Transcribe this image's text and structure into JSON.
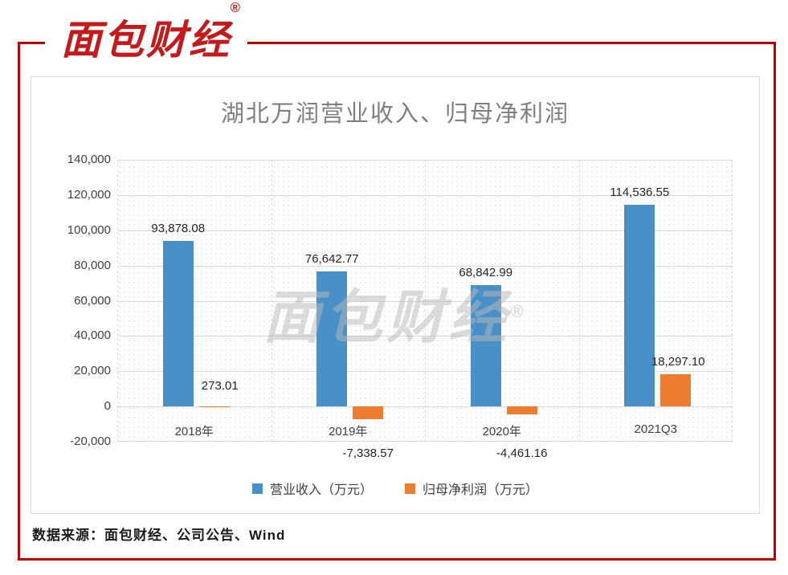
{
  "brand": {
    "logo_text": "面包财经",
    "registered_mark": "®",
    "frame_color": "#c00000"
  },
  "watermark": {
    "text": "面包财经",
    "registered_mark": "®"
  },
  "chart_data": {
    "type": "bar",
    "title": "湖北万润营业收入、归母净利润",
    "categories": [
      "2018年",
      "2019年",
      "2020年",
      "2021Q3"
    ],
    "series": [
      {
        "name": "营业收入（万元）",
        "color": "#4a90c8",
        "values": [
          93878.08,
          76642.77,
          68842.99,
          114536.55
        ],
        "labels": [
          "93,878.08",
          "76,642.77",
          "68,842.99",
          "114,536.55"
        ]
      },
      {
        "name": "归母净利润（万元）",
        "color": "#ed7d31",
        "values": [
          273.01,
          -7338.57,
          -4461.16,
          18297.1
        ],
        "labels": [
          "273.01",
          "-7,338.57",
          "-4,461.16",
          "18,297.10"
        ]
      }
    ],
    "ylim": [
      -20000,
      140000
    ],
    "ytick_step": 20000,
    "ytick_labels": [
      "140,000",
      "120,000",
      "100,000",
      "80,000",
      "60,000",
      "40,000",
      "20,000",
      "0",
      "-20,000"
    ],
    "grid": true,
    "legend_position": "bottom"
  },
  "footer": {
    "source_text": "数据来源：面包财经、公司公告、Wind"
  }
}
